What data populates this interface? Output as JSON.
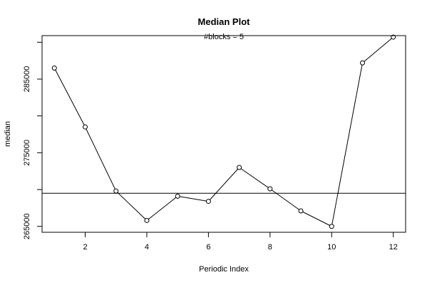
{
  "chart_data": {
    "type": "line",
    "title": "Median Plot",
    "subtitle": "#blocks =  5",
    "xlabel": "Periodic Index",
    "ylabel": "median",
    "x": [
      1,
      2,
      3,
      4,
      5,
      6,
      7,
      8,
      9,
      10,
      11,
      12
    ],
    "y": [
      286500,
      278500,
      269800,
      265800,
      269100,
      268400,
      273000,
      270100,
      267100,
      265000,
      287200,
      290700
    ],
    "xlim": [
      0.6,
      12.4
    ],
    "ylim": [
      264200,
      290900
    ],
    "x_ticks": [
      2,
      4,
      6,
      8,
      10,
      12
    ],
    "y_ticks": [
      265000,
      275000,
      285000
    ],
    "hline": 269500,
    "series_color": "#000000",
    "marker": "open-circle",
    "grid": false
  }
}
